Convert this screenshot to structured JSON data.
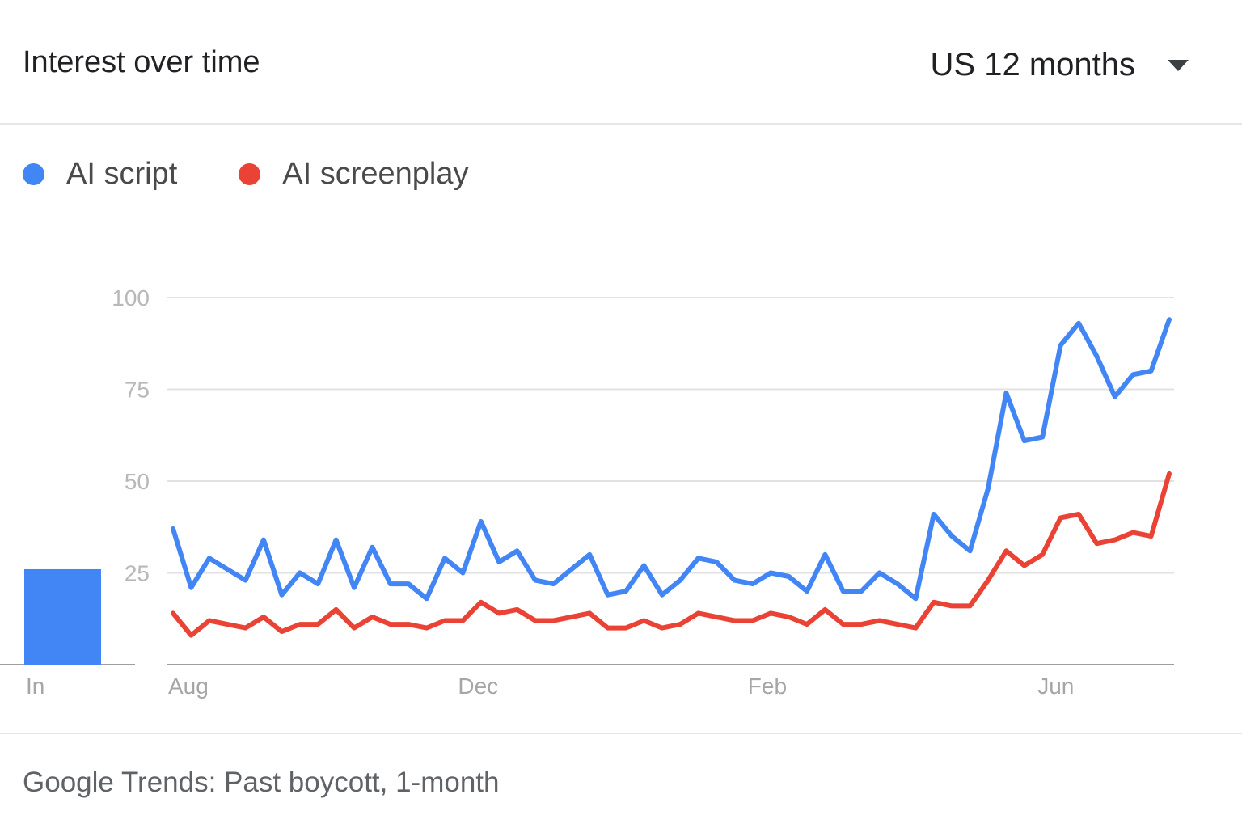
{
  "header": {
    "title": "Interest over time",
    "region_period": "US 12 months",
    "dropdown_icon": "caret-down-icon"
  },
  "legend": [
    {
      "label": "AI script",
      "color": "#4285f4"
    },
    {
      "label": "AI screenplay",
      "color": "#ea4335"
    }
  ],
  "footer": {
    "caption": "Google Trends: Past boycott, 1-month"
  },
  "chart_data": [
    {
      "type": "bar",
      "categories": [
        "In"
      ],
      "values": [
        26
      ],
      "color": "#4285f4",
      "ylim": [
        0,
        100
      ]
    },
    {
      "type": "line",
      "ylim": [
        0,
        100
      ],
      "yticks": [
        25,
        50,
        75,
        100
      ],
      "grid": true,
      "xticklabels": [
        {
          "label": "Aug",
          "index": 0
        },
        {
          "label": "Dec",
          "index": 16
        },
        {
          "label": "Feb",
          "index": 32
        },
        {
          "label": "Jun",
          "index": 48
        }
      ],
      "series": [
        {
          "name": "AI script",
          "color": "#4285f4",
          "values": [
            37,
            21,
            29,
            26,
            23,
            34,
            19,
            25,
            22,
            34,
            21,
            32,
            22,
            22,
            18,
            29,
            25,
            39,
            28,
            31,
            23,
            22,
            26,
            30,
            19,
            20,
            27,
            19,
            23,
            29,
            28,
            23,
            22,
            25,
            24,
            20,
            30,
            20,
            20,
            25,
            22,
            18,
            41,
            35,
            31,
            48,
            74,
            61,
            62,
            87,
            93,
            84,
            73,
            79,
            80,
            94
          ]
        },
        {
          "name": "AI screenplay",
          "color": "#ea4335",
          "values": [
            14,
            8,
            12,
            11,
            10,
            13,
            9,
            11,
            11,
            15,
            10,
            13,
            11,
            11,
            10,
            12,
            12,
            17,
            14,
            15,
            12,
            12,
            13,
            14,
            10,
            10,
            12,
            10,
            11,
            14,
            13,
            12,
            12,
            14,
            13,
            11,
            15,
            11,
            11,
            12,
            11,
            10,
            17,
            16,
            16,
            23,
            31,
            27,
            30,
            40,
            41,
            33,
            34,
            36,
            35,
            52
          ]
        }
      ]
    }
  ]
}
